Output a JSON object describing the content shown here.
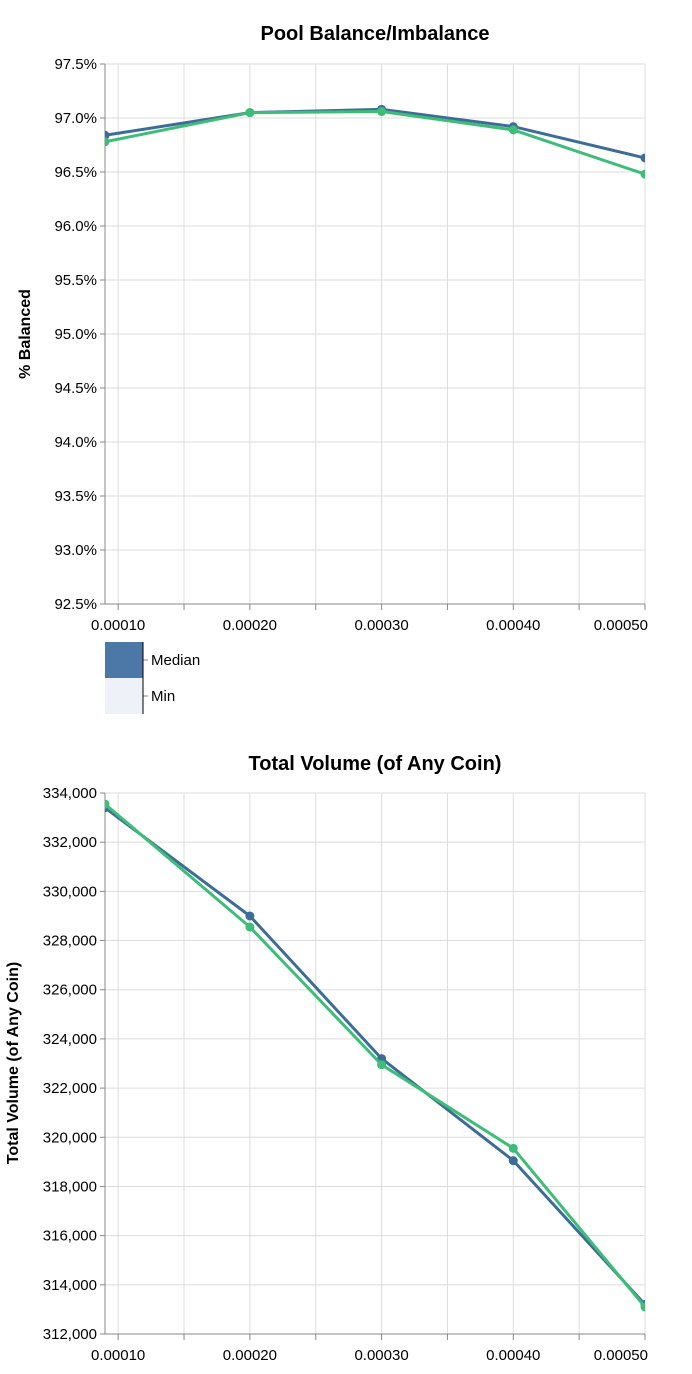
{
  "chart_data": [
    {
      "type": "line",
      "title": "Pool Balance/Imbalance",
      "xlabel": "",
      "ylabel": "% Balanced",
      "x": [
        9e-05,
        0.0002,
        0.0003,
        0.0004,
        0.0005
      ],
      "xlim": [
        9e-05,
        0.0005
      ],
      "x_tick_values": [
        0.0001,
        0.0002,
        0.0003,
        0.0004,
        0.0005
      ],
      "x_tick_labels": [
        "0.00010",
        "0.00020",
        "0.00030",
        "0.00040",
        "0.00050"
      ],
      "ylim": [
        92.5,
        97.5
      ],
      "y_tick_values": [
        92.5,
        93.0,
        93.5,
        94.0,
        94.5,
        95.0,
        95.5,
        96.0,
        96.5,
        97.0,
        97.5
      ],
      "y_tick_labels": [
        "92.5%",
        "93.0%",
        "93.5%",
        "94.0%",
        "94.5%",
        "95.0%",
        "95.5%",
        "96.0%",
        "96.5%",
        "97.0%",
        "97.5%"
      ],
      "grid": true,
      "series": [
        {
          "name": "Median",
          "color": "#3d6d96",
          "values": [
            96.84,
            97.05,
            97.08,
            96.92,
            96.63
          ]
        },
        {
          "name": "Min",
          "color": "#3dbd78",
          "values": [
            96.78,
            97.05,
            97.06,
            96.89,
            96.48
          ]
        }
      ],
      "legend": {
        "placement": "bottom-left",
        "items": [
          {
            "label": "Median",
            "color": "#4c78a8"
          },
          {
            "label": "Min",
            "color": "#eef1f8"
          }
        ]
      }
    },
    {
      "type": "line",
      "title": "Total Volume (of Any Coin)",
      "xlabel": "",
      "ylabel": "Total Volume (of Any Coin)",
      "x": [
        9e-05,
        0.0002,
        0.0003,
        0.0004,
        0.0005
      ],
      "xlim": [
        9e-05,
        0.0005
      ],
      "x_tick_values": [
        0.0001,
        0.0002,
        0.0003,
        0.0004,
        0.0005
      ],
      "x_tick_labels": [
        "0.00010",
        "0.00020",
        "0.00030",
        "0.00040",
        "0.00050"
      ],
      "ylim": [
        312000,
        334000
      ],
      "y_tick_values": [
        312000,
        314000,
        316000,
        318000,
        320000,
        322000,
        324000,
        326000,
        328000,
        330000,
        332000,
        334000
      ],
      "y_tick_labels": [
        "312,000",
        "314,000",
        "316,000",
        "318,000",
        "320,000",
        "322,000",
        "324,000",
        "326,000",
        "328,000",
        "330,000",
        "332,000",
        "334,000"
      ],
      "grid": true,
      "series": [
        {
          "name": "Median",
          "color": "#3d6d96",
          "values": [
            333400,
            329000,
            323200,
            319050,
            313200
          ]
        },
        {
          "name": "Min",
          "color": "#3dbd78",
          "values": [
            333550,
            328550,
            322950,
            319550,
            313100
          ]
        }
      ]
    }
  ]
}
